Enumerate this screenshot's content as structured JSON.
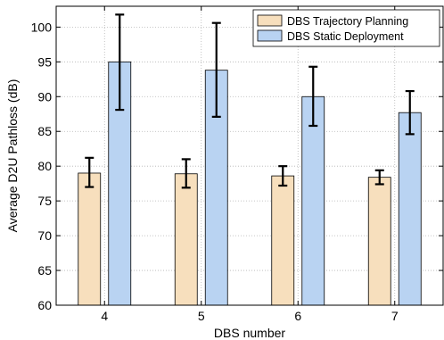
{
  "chart_data": {
    "type": "bar",
    "title": "",
    "xlabel": "DBS number",
    "ylabel": "Average D2U Pathloss (dB)",
    "categories": [
      "4",
      "5",
      "6",
      "7"
    ],
    "ylim": [
      60,
      103
    ],
    "yticks": [
      60,
      65,
      70,
      75,
      80,
      85,
      90,
      95,
      100
    ],
    "grid": true,
    "legend_position": "top-right",
    "series": [
      {
        "name": "DBS Trajectory Planning",
        "color": "#f7dfbd",
        "values": [
          79.0,
          78.9,
          78.6,
          78.4
        ],
        "err_low": [
          77.0,
          76.9,
          77.2,
          77.4
        ],
        "err_high": [
          81.2,
          81.0,
          80.0,
          79.4
        ]
      },
      {
        "name": "DBS Static Deployment",
        "color": "#b9d3f2",
        "values": [
          95.0,
          93.8,
          90.0,
          87.7
        ],
        "err_low": [
          88.1,
          87.1,
          85.8,
          84.6
        ],
        "err_high": [
          101.8,
          100.6,
          94.3,
          90.8
        ]
      }
    ]
  }
}
